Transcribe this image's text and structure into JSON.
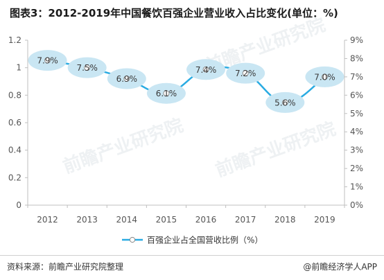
{
  "title": "图表3：2012-2019年中国餐饮百强企业营业收入占比变化(单位：%)",
  "source": "资料来源：前瞻产业研究院整理",
  "credit": "@前瞻经济学人APP",
  "watermark": "前瞻产业研究院",
  "colors": {
    "line": "#29abe2",
    "bubble": "#c9e6f3",
    "label": "#3a3a3a",
    "axis": "#555555",
    "rule": "#cfcfcf"
  },
  "chart_data": {
    "type": "line",
    "categories": [
      "2012",
      "2013",
      "2014",
      "2015",
      "2016",
      "2017",
      "2018",
      "2019"
    ],
    "series": [
      {
        "name": "百强企业占全国营收比例（%）",
        "values": [
          7.9,
          7.5,
          6.9,
          6.1,
          7.4,
          7.2,
          5.6,
          7.0
        ],
        "data_labels": [
          "7.9%",
          "7.5%",
          "6.9%",
          "6.1%",
          "7.4%",
          "7.2%",
          "5.6%",
          "7.0%"
        ],
        "axis": "right"
      }
    ],
    "left_axis": {
      "ticks": [
        "0",
        "0.2",
        "0.4",
        "0.6",
        "0.8",
        "1",
        "1.2"
      ],
      "ylim": [
        0,
        1.2
      ]
    },
    "right_axis": {
      "ticks": [
        "0%",
        "1%",
        "2%",
        "3%",
        "4%",
        "5%",
        "6%",
        "7%",
        "8%",
        "9%"
      ],
      "ylim": [
        0,
        9
      ]
    },
    "legend_position": "bottom",
    "grid": false,
    "line_style": "smooth"
  }
}
